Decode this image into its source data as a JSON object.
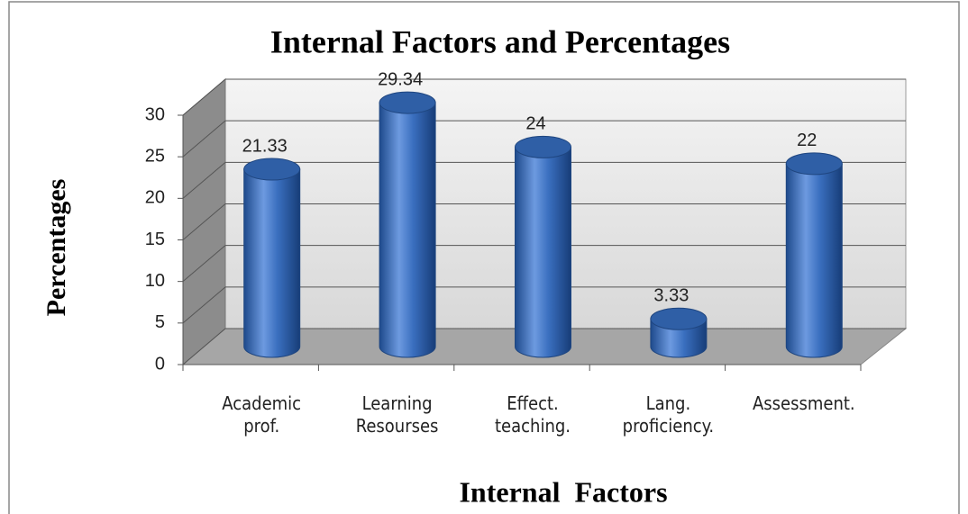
{
  "chart_data": {
    "type": "bar3d",
    "title": "Internal Factors and Percentages",
    "xlabel": "Internal  Factors",
    "ylabel": "Percentages",
    "categories": [
      "Academic prof.",
      "Learning Resourses",
      "Effect. teaching.",
      "Lang. proficiency.",
      "Assessment."
    ],
    "values": [
      21.33,
      29.34,
      24,
      3.33,
      22
    ],
    "color": "#3a6fbf",
    "ylim": [
      0,
      30
    ],
    "yticks": [
      0,
      5,
      10,
      15,
      20,
      25,
      30
    ],
    "grid": true
  }
}
